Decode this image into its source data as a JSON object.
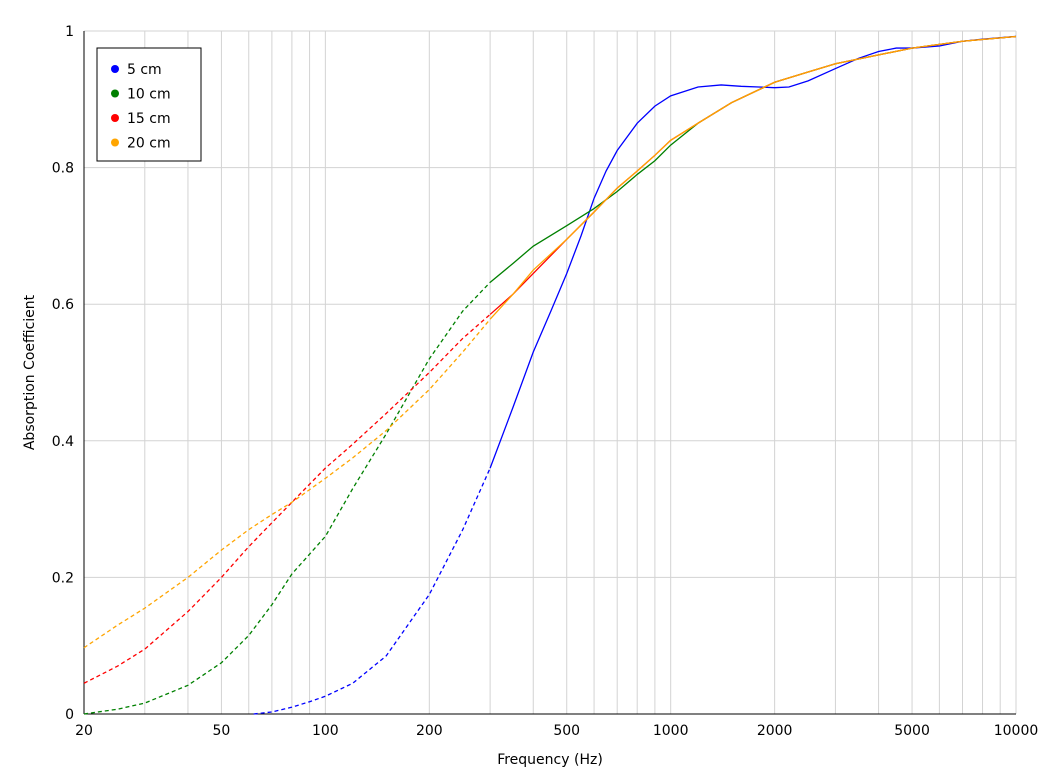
{
  "chart_data": {
    "type": "line",
    "xscale": "log",
    "xlabel": "Frequency (Hz)",
    "ylabel": "Absorption Coefficient",
    "xlim": [
      20,
      10000
    ],
    "ylim": [
      0,
      1
    ],
    "grid": true,
    "legend": "top-left",
    "x_tick_labels": [
      "20",
      "50",
      "100",
      "200",
      "500",
      "1000",
      "2000",
      "5000",
      "10000"
    ],
    "x_tick_values": [
      20,
      50,
      100,
      200,
      500,
      1000,
      2000,
      5000,
      10000
    ],
    "y_tick_labels": [
      "0",
      "0.2",
      "0.4",
      "0.6",
      "0.8",
      "1"
    ],
    "y_tick_values": [
      0,
      0.2,
      0.4,
      0.6,
      0.8,
      1
    ],
    "dashed_below_x": 300,
    "series": [
      {
        "name": "5 cm",
        "color": "#0000ff",
        "points": [
          [
            62,
            0.0
          ],
          [
            70,
            0.003
          ],
          [
            80,
            0.01
          ],
          [
            90,
            0.018
          ],
          [
            100,
            0.026
          ],
          [
            120,
            0.045
          ],
          [
            150,
            0.085
          ],
          [
            200,
            0.175
          ],
          [
            250,
            0.27
          ],
          [
            300,
            0.36
          ],
          [
            350,
            0.45
          ],
          [
            400,
            0.53
          ],
          [
            450,
            0.59
          ],
          [
            500,
            0.645
          ],
          [
            550,
            0.7
          ],
          [
            600,
            0.755
          ],
          [
            650,
            0.795
          ],
          [
            700,
            0.825
          ],
          [
            800,
            0.865
          ],
          [
            900,
            0.89
          ],
          [
            1000,
            0.905
          ],
          [
            1200,
            0.918
          ],
          [
            1400,
            0.921
          ],
          [
            1600,
            0.919
          ],
          [
            1800,
            0.918
          ],
          [
            2000,
            0.917
          ],
          [
            2200,
            0.918
          ],
          [
            2500,
            0.927
          ],
          [
            3000,
            0.945
          ],
          [
            3500,
            0.96
          ],
          [
            4000,
            0.97
          ],
          [
            4500,
            0.975
          ],
          [
            5000,
            0.975
          ],
          [
            6000,
            0.978
          ],
          [
            7000,
            0.985
          ],
          [
            8000,
            0.988
          ],
          [
            10000,
            0.992
          ]
        ]
      },
      {
        "name": "10 cm",
        "color": "#008000",
        "points": [
          [
            20,
            0.0
          ],
          [
            25,
            0.007
          ],
          [
            30,
            0.016
          ],
          [
            40,
            0.042
          ],
          [
            50,
            0.075
          ],
          [
            60,
            0.115
          ],
          [
            70,
            0.16
          ],
          [
            80,
            0.205
          ],
          [
            100,
            0.26
          ],
          [
            120,
            0.33
          ],
          [
            150,
            0.41
          ],
          [
            200,
            0.52
          ],
          [
            250,
            0.59
          ],
          [
            300,
            0.632
          ],
          [
            350,
            0.66
          ],
          [
            400,
            0.685
          ],
          [
            500,
            0.715
          ],
          [
            600,
            0.74
          ],
          [
            700,
            0.765
          ],
          [
            800,
            0.79
          ],
          [
            900,
            0.81
          ],
          [
            1000,
            0.833
          ],
          [
            1200,
            0.865
          ],
          [
            1500,
            0.895
          ],
          [
            2000,
            0.925
          ],
          [
            2500,
            0.94
          ],
          [
            3000,
            0.952
          ],
          [
            4000,
            0.965
          ],
          [
            5000,
            0.975
          ],
          [
            7000,
            0.985
          ],
          [
            10000,
            0.992
          ]
        ]
      },
      {
        "name": "15 cm",
        "color": "#ff0000",
        "points": [
          [
            20,
            0.045
          ],
          [
            25,
            0.07
          ],
          [
            30,
            0.095
          ],
          [
            40,
            0.15
          ],
          [
            50,
            0.2
          ],
          [
            60,
            0.245
          ],
          [
            70,
            0.28
          ],
          [
            80,
            0.31
          ],
          [
            100,
            0.36
          ],
          [
            120,
            0.395
          ],
          [
            150,
            0.44
          ],
          [
            200,
            0.5
          ],
          [
            250,
            0.55
          ],
          [
            300,
            0.585
          ],
          [
            350,
            0.615
          ],
          [
            400,
            0.645
          ],
          [
            500,
            0.695
          ],
          [
            600,
            0.735
          ],
          [
            700,
            0.77
          ],
          [
            800,
            0.795
          ],
          [
            900,
            0.818
          ],
          [
            1000,
            0.84
          ],
          [
            1200,
            0.865
          ],
          [
            1500,
            0.895
          ],
          [
            2000,
            0.925
          ],
          [
            2500,
            0.94
          ],
          [
            3000,
            0.952
          ],
          [
            4000,
            0.965
          ],
          [
            5000,
            0.975
          ],
          [
            7000,
            0.985
          ],
          [
            10000,
            0.992
          ]
        ]
      },
      {
        "name": "20 cm",
        "color": "#ffa500",
        "points": [
          [
            20,
            0.097
          ],
          [
            25,
            0.13
          ],
          [
            30,
            0.155
          ],
          [
            40,
            0.2
          ],
          [
            50,
            0.24
          ],
          [
            60,
            0.27
          ],
          [
            70,
            0.292
          ],
          [
            80,
            0.31
          ],
          [
            100,
            0.345
          ],
          [
            120,
            0.375
          ],
          [
            150,
            0.415
          ],
          [
            200,
            0.475
          ],
          [
            250,
            0.53
          ],
          [
            300,
            0.578
          ],
          [
            350,
            0.615
          ],
          [
            400,
            0.65
          ],
          [
            500,
            0.695
          ],
          [
            600,
            0.735
          ],
          [
            700,
            0.77
          ],
          [
            800,
            0.795
          ],
          [
            900,
            0.818
          ],
          [
            1000,
            0.84
          ],
          [
            1200,
            0.865
          ],
          [
            1500,
            0.895
          ],
          [
            2000,
            0.925
          ],
          [
            2500,
            0.94
          ],
          [
            3000,
            0.952
          ],
          [
            4000,
            0.965
          ],
          [
            5000,
            0.975
          ],
          [
            7000,
            0.985
          ],
          [
            10000,
            0.992
          ]
        ]
      }
    ]
  }
}
